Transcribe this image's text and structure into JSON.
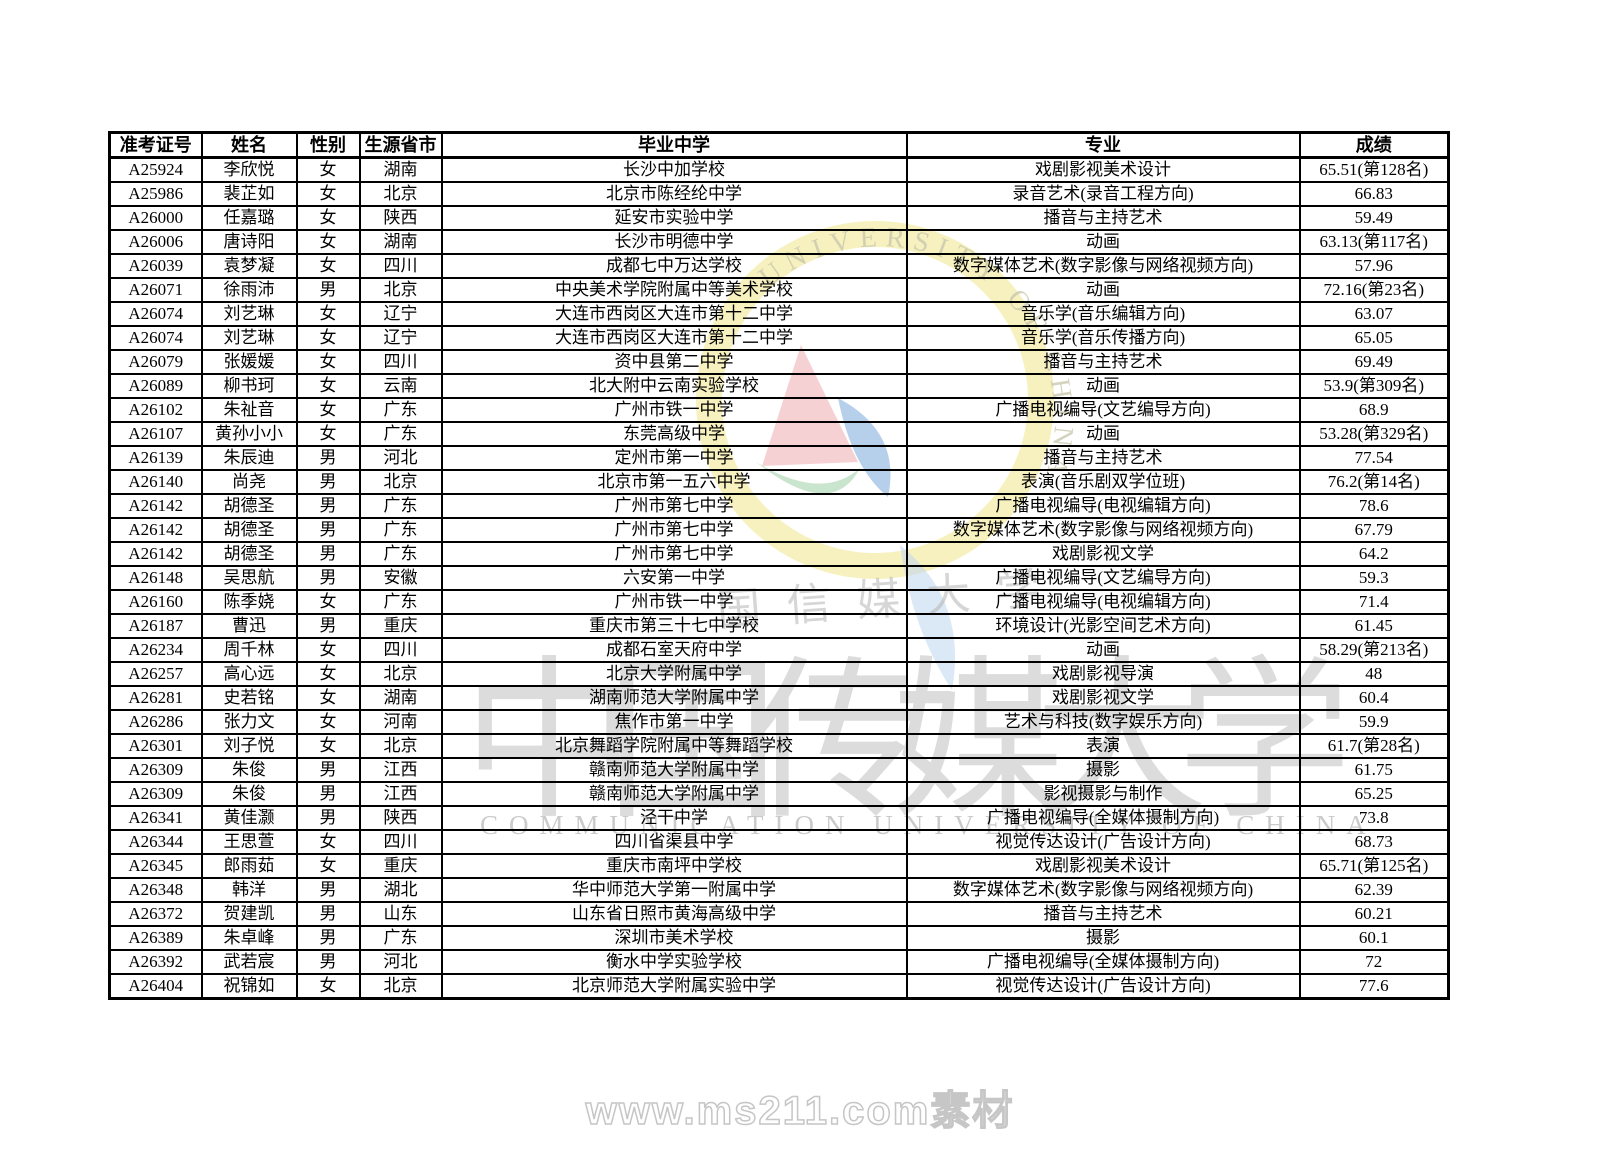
{
  "table": {
    "headers": [
      "准考证号",
      "姓名",
      "性别",
      "生源省市",
      "毕业中学",
      "专业",
      "成绩"
    ],
    "rows": [
      [
        "A25924",
        "李欣悦",
        "女",
        "湖南",
        "长沙中加学校",
        "戏剧影视美术设计",
        "65.51(第128名)"
      ],
      [
        "A25986",
        "裴芷如",
        "女",
        "北京",
        "北京市陈经纶中学",
        "录音艺术(录音工程方向)",
        "66.83"
      ],
      [
        "A26000",
        "任嘉璐",
        "女",
        "陕西",
        "延安市实验中学",
        "播音与主持艺术",
        "59.49"
      ],
      [
        "A26006",
        "唐诗阳",
        "女",
        "湖南",
        "长沙市明德中学",
        "动画",
        "63.13(第117名)"
      ],
      [
        "A26039",
        "袁梦凝",
        "女",
        "四川",
        "成都七中万达学校",
        "数字媒体艺术(数字影像与网络视频方向)",
        "57.96"
      ],
      [
        "A26071",
        "徐雨沛",
        "男",
        "北京",
        "中央美术学院附属中等美术学校",
        "动画",
        "72.16(第23名)"
      ],
      [
        "A26074",
        "刘艺琳",
        "女",
        "辽宁",
        "大连市西岗区大连市第十二中学",
        "音乐学(音乐编辑方向)",
        "63.07"
      ],
      [
        "A26074",
        "刘艺琳",
        "女",
        "辽宁",
        "大连市西岗区大连市第十二中学",
        "音乐学(音乐传播方向)",
        "65.05"
      ],
      [
        "A26079",
        "张媛媛",
        "女",
        "四川",
        "资中县第二中学",
        "播音与主持艺术",
        "69.49"
      ],
      [
        "A26089",
        "柳书珂",
        "女",
        "云南",
        "北大附中云南实验学校",
        "动画",
        "53.9(第309名)"
      ],
      [
        "A26102",
        "朱祉音",
        "女",
        "广东",
        "广州市铁一中学",
        "广播电视编导(文艺编导方向)",
        "68.9"
      ],
      [
        "A26107",
        "黄孙小小",
        "女",
        "广东",
        "东莞高级中学",
        "动画",
        "53.28(第329名)"
      ],
      [
        "A26139",
        "朱辰迪",
        "男",
        "河北",
        "定州市第一中学",
        "播音与主持艺术",
        "77.54"
      ],
      [
        "A26140",
        "尚尧",
        "男",
        "北京",
        "北京市第一五六中学",
        "表演(音乐剧双学位班)",
        "76.2(第14名)"
      ],
      [
        "A26142",
        "胡德圣",
        "男",
        "广东",
        "广州市第七中学",
        "广播电视编导(电视编辑方向)",
        "78.6"
      ],
      [
        "A26142",
        "胡德圣",
        "男",
        "广东",
        "广州市第七中学",
        "数字媒体艺术(数字影像与网络视频方向)",
        "67.79"
      ],
      [
        "A26142",
        "胡德圣",
        "男",
        "广东",
        "广州市第七中学",
        "戏剧影视文学",
        "64.2"
      ],
      [
        "A26148",
        "吴思航",
        "男",
        "安徽",
        "六安第一中学",
        "广播电视编导(文艺编导方向)",
        "59.3"
      ],
      [
        "A26160",
        "陈季娆",
        "女",
        "广东",
        "广州市铁一中学",
        "广播电视编导(电视编辑方向)",
        "71.4"
      ],
      [
        "A26187",
        "曹迅",
        "男",
        "重庆",
        "重庆市第三十七中学校",
        "环境设计(光影空间艺术方向)",
        "61.45"
      ],
      [
        "A26234",
        "周千林",
        "女",
        "四川",
        "成都石室天府中学",
        "动画",
        "58.29(第213名)"
      ],
      [
        "A26257",
        "高心远",
        "女",
        "北京",
        "北京大学附属中学",
        "戏剧影视导演",
        "48"
      ],
      [
        "A26281",
        "史若铭",
        "女",
        "湖南",
        "湖南师范大学附属中学",
        "戏剧影视文学",
        "60.4"
      ],
      [
        "A26286",
        "张力文",
        "女",
        "河南",
        "焦作市第一中学",
        "艺术与科技(数字娱乐方向)",
        "59.9"
      ],
      [
        "A26301",
        "刘子悦",
        "女",
        "北京",
        "北京舞蹈学院附属中等舞蹈学校",
        "表演",
        "61.7(第28名)"
      ],
      [
        "A26309",
        "朱俊",
        "男",
        "江西",
        "赣南师范大学附属中学",
        "摄影",
        "61.75"
      ],
      [
        "A26309",
        "朱俊",
        "男",
        "江西",
        "赣南师范大学附属中学",
        "影视摄影与制作",
        "65.25"
      ],
      [
        "A26341",
        "黄佳灏",
        "男",
        "陕西",
        "泾干中学",
        "广播电视编导(全媒体摄制方向)",
        "73.8"
      ],
      [
        "A26344",
        "王思萱",
        "女",
        "四川",
        "四川省渠县中学",
        "视觉传达设计(广告设计方向)",
        "68.73"
      ],
      [
        "A26345",
        "郎雨茹",
        "女",
        "重庆",
        "重庆市南坪中学校",
        "戏剧影视美术设计",
        "65.71(第125名)"
      ],
      [
        "A26348",
        "韩洋",
        "男",
        "湖北",
        "华中师范大学第一附属中学",
        "数字媒体艺术(数字影像与网络视频方向)",
        "62.39"
      ],
      [
        "A26372",
        "贺建凯",
        "男",
        "山东",
        "山东省日照市黄海高级中学",
        "播音与主持艺术",
        "60.21"
      ],
      [
        "A26389",
        "朱卓峰",
        "男",
        "广东",
        "深圳市美术学校",
        "摄影",
        "60.1"
      ],
      [
        "A26392",
        "武若宸",
        "男",
        "河北",
        "衡水中学实验学校",
        "广播电视编导(全媒体摄制方向)",
        "72"
      ],
      [
        "A26404",
        "祝锦如",
        "女",
        "北京",
        "北京师范大学附属实验中学",
        "视觉传达设计(广告设计方向)",
        "77.6"
      ]
    ]
  },
  "watermark": {
    "arc_text": "UNIVERSITY OF CHINA",
    "script_text": "国信媒大学",
    "big_text": "中国传媒大学",
    "latin_text": "COMMUNICATION UNIVERSITY OF CHINA",
    "site_text": "www.ms211.com素材",
    "colors": {
      "ring_yellow": "#f6efb4",
      "petal_pink": "#f5c9cc",
      "petal_blue": "#a9c7e6",
      "petal_green": "#bfe0c4",
      "gray_text": "#bdbdbd"
    }
  }
}
